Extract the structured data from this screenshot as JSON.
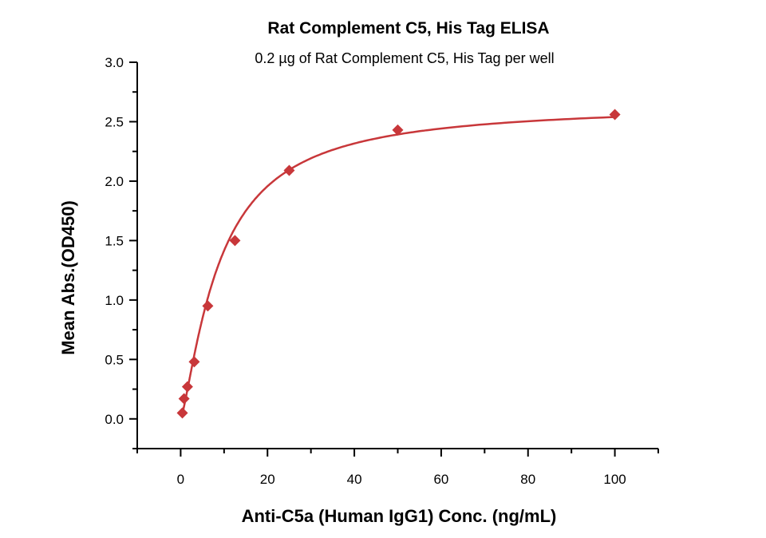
{
  "chart_data": {
    "type": "scatter",
    "title": "Rat Complement C5, His Tag ELISA",
    "subtitle": "0.2 µg of Rat Complement C5, His Tag per well",
    "xlabel": "Anti-C5a (Human IgG1) Conc. (ng/mL)",
    "ylabel": "Mean Abs.(OD450)",
    "xlim": [
      -10,
      110
    ],
    "ylim": [
      -0.25,
      3.0
    ],
    "xticks": [
      "0",
      "20",
      "40",
      "60",
      "80",
      "100"
    ],
    "yticks": [
      "0.0",
      "0.5",
      "1.0",
      "1.5",
      "2.0",
      "2.5",
      "3.0"
    ],
    "grid": false,
    "color": "#c8373a",
    "series": [
      {
        "name": "Mean Abs.",
        "marker": "diamond",
        "fit_line": true,
        "x": [
          0.39,
          0.78,
          1.56,
          3.125,
          6.25,
          12.5,
          25,
          50,
          100
        ],
        "y": [
          0.05,
          0.17,
          0.27,
          0.48,
          0.95,
          1.5,
          2.09,
          2.43,
          2.56
        ]
      }
    ]
  }
}
